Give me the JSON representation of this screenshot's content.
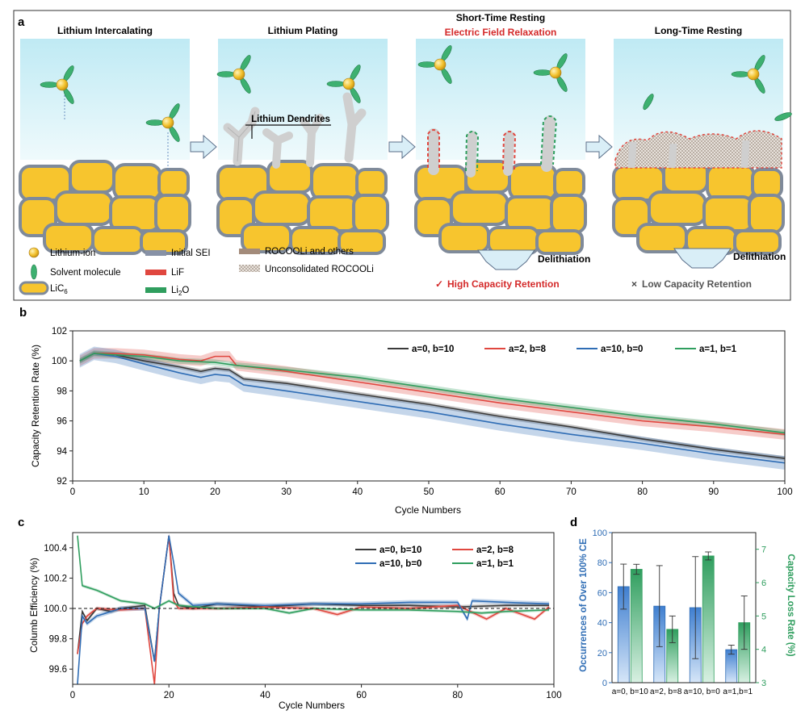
{
  "panel_a": {
    "label": "a",
    "stages": [
      {
        "title": "Lithium Intercalating",
        "subtitle": ""
      },
      {
        "title": "Lithium Plating",
        "subtitle": ""
      },
      {
        "title": "Short-Time Resting",
        "subtitle": "Electric Field Relaxation"
      },
      {
        "title": "Long-Time Resting",
        "subtitle": ""
      }
    ],
    "dendrite_label": "Lithium Dendrites",
    "delithiation_1": "Delithiation",
    "delithiation_2": "Delithiation",
    "result_high_mark": "✓",
    "result_high": "High  Capacity Retention",
    "result_low_mark": "×",
    "result_low": "Low  Capacity Retention",
    "legend": {
      "lithium_ion": "Lithium-ion",
      "solvent": "Solvent molecule",
      "lic6_main": "LiC",
      "lic6_sub": "6",
      "initial_sei": "Initial SEI",
      "lif": "LiF",
      "li2o_a": "Li",
      "li2o_sub": "2",
      "li2o_b": "O",
      "rocooli": "ROCOOLi and others",
      "unconsolidated": "Unconsolidated ROCOOLi"
    },
    "colors": {
      "sky": "#c9eef7",
      "particle": "#f7c52e",
      "particle_edge": "#7f8a9a",
      "dendrite": "#cfcfcf",
      "lif": "#e0473f",
      "li2o": "#2f9e5e",
      "sei": "#8791a6",
      "rocooli": "#a38b7a",
      "accent_red": "#d42a2a"
    }
  },
  "chart_data": [
    {
      "panel": "b",
      "type": "line",
      "title": "",
      "xlabel": "Cycle Numbers",
      "ylabel": "Capacity Retention Rate (%)",
      "xlim": [
        0,
        100
      ],
      "ylim": [
        92,
        102
      ],
      "xticks": [
        0,
        10,
        20,
        30,
        40,
        50,
        60,
        70,
        80,
        90,
        100
      ],
      "yticks": [
        92,
        94,
        96,
        98,
        100,
        102
      ],
      "legend_position": "top-right",
      "series": [
        {
          "name": "a=0, b=10",
          "color": "#3a3a3a",
          "band": 0.15,
          "points": [
            [
              1,
              100
            ],
            [
              3,
              100.5
            ],
            [
              6,
              100.4
            ],
            [
              10,
              100
            ],
            [
              15,
              99.6
            ],
            [
              18,
              99.3
            ],
            [
              20,
              99.5
            ],
            [
              22,
              99.4
            ],
            [
              24,
              98.8
            ],
            [
              30,
              98.5
            ],
            [
              40,
              97.8
            ],
            [
              50,
              97.1
            ],
            [
              60,
              96.3
            ],
            [
              70,
              95.6
            ],
            [
              80,
              94.8
            ],
            [
              90,
              94.1
            ],
            [
              100,
              93.5
            ]
          ]
        },
        {
          "name": "a=2, b=8",
          "color": "#e0473f",
          "band": 0.35,
          "points": [
            [
              1,
              100
            ],
            [
              3,
              100.5
            ],
            [
              6,
              100.5
            ],
            [
              10,
              100.4
            ],
            [
              15,
              100.1
            ],
            [
              18,
              100
            ],
            [
              20,
              100.3
            ],
            [
              22,
              100.3
            ],
            [
              23,
              99.7
            ],
            [
              30,
              99.3
            ],
            [
              40,
              98.6
            ],
            [
              50,
              97.9
            ],
            [
              60,
              97.2
            ],
            [
              70,
              96.6
            ],
            [
              80,
              96
            ],
            [
              90,
              95.6
            ],
            [
              100,
              95.1
            ]
          ]
        },
        {
          "name": "a=10, b=0",
          "color": "#2f6db5",
          "band": 0.45,
          "points": [
            [
              1,
              100
            ],
            [
              3,
              100.5
            ],
            [
              6,
              100.3
            ],
            [
              10,
              99.8
            ],
            [
              15,
              99.2
            ],
            [
              18,
              98.9
            ],
            [
              20,
              99.1
            ],
            [
              22,
              99
            ],
            [
              24,
              98.4
            ],
            [
              30,
              98
            ],
            [
              40,
              97.3
            ],
            [
              50,
              96.6
            ],
            [
              60,
              95.8
            ],
            [
              70,
              95.1
            ],
            [
              80,
              94.5
            ],
            [
              90,
              93.8
            ],
            [
              100,
              93.2
            ]
          ]
        },
        {
          "name": "a=1, b=1",
          "color": "#2f9e5e",
          "band": 0.2,
          "points": [
            [
              1,
              100
            ],
            [
              3,
              100.5
            ],
            [
              6,
              100.4
            ],
            [
              10,
              100.3
            ],
            [
              15,
              100
            ],
            [
              20,
              99.9
            ],
            [
              23,
              99.7
            ],
            [
              30,
              99.4
            ],
            [
              40,
              98.9
            ],
            [
              50,
              98.2
            ],
            [
              60,
              97.5
            ],
            [
              70,
              96.9
            ],
            [
              80,
              96.3
            ],
            [
              90,
              95.8
            ],
            [
              100,
              95.2
            ]
          ]
        }
      ]
    },
    {
      "panel": "c",
      "type": "line",
      "title": "",
      "xlabel": "Cycle Numbers",
      "ylabel": "Columb Efficiency (%)",
      "xlim": [
        0,
        100
      ],
      "ylim": [
        99.5,
        100.5
      ],
      "xticks": [
        0,
        20,
        40,
        60,
        80,
        100
      ],
      "yticks": [
        99.6,
        99.8,
        100.0,
        100.2,
        100.4
      ],
      "reference_line": 100.0,
      "legend_position": "top-right",
      "series": [
        {
          "name": "a=0, b=10",
          "color": "#3a3a3a",
          "band": 0.012,
          "points": [
            [
              1,
              99.7
            ],
            [
              2,
              99.98
            ],
            [
              3,
              99.92
            ],
            [
              5,
              100.0
            ],
            [
              8,
              99.98
            ],
            [
              10,
              100.0
            ],
            [
              15,
              100.02
            ],
            [
              17,
              99.65
            ],
            [
              18,
              100.0
            ],
            [
              20,
              100.48
            ],
            [
              21,
              100.1
            ],
            [
              22,
              100.02
            ],
            [
              25,
              100.0
            ],
            [
              30,
              100.03
            ],
            [
              40,
              100.01
            ],
            [
              50,
              100.03
            ],
            [
              60,
              100.02
            ],
            [
              70,
              100.02
            ],
            [
              80,
              100.01
            ],
            [
              90,
              100.02
            ],
            [
              99,
              100.02
            ]
          ]
        },
        {
          "name": "a=2, b=8",
          "color": "#e0473f",
          "band": 0.012,
          "points": [
            [
              1,
              99.7
            ],
            [
              2,
              99.9
            ],
            [
              3,
              99.95
            ],
            [
              5,
              100.0
            ],
            [
              10,
              99.99
            ],
            [
              15,
              100.0
            ],
            [
              17,
              99.5
            ],
            [
              18,
              100.0
            ],
            [
              20,
              100.48
            ],
            [
              21,
              100.05
            ],
            [
              22,
              100.0
            ],
            [
              30,
              100.0
            ],
            [
              40,
              100.01
            ],
            [
              50,
              100.0
            ],
            [
              55,
              99.96
            ],
            [
              60,
              100.01
            ],
            [
              70,
              100.0
            ],
            [
              80,
              100.02
            ],
            [
              86,
              99.93
            ],
            [
              90,
              100.0
            ],
            [
              96,
              99.93
            ],
            [
              99,
              100.01
            ]
          ]
        },
        {
          "name": "a=10, b=0",
          "color": "#2f6db5",
          "band": 0.015,
          "points": [
            [
              1,
              99.5
            ],
            [
              2,
              99.95
            ],
            [
              3,
              99.9
            ],
            [
              5,
              99.95
            ],
            [
              10,
              100.0
            ],
            [
              15,
              100.0
            ],
            [
              17,
              99.65
            ],
            [
              18,
              100.0
            ],
            [
              20,
              100.48
            ],
            [
              21,
              100.3
            ],
            [
              22,
              100.1
            ],
            [
              25,
              100.02
            ],
            [
              30,
              100.03
            ],
            [
              40,
              100.02
            ],
            [
              50,
              100.03
            ],
            [
              60,
              100.03
            ],
            [
              70,
              100.04
            ],
            [
              80,
              100.04
            ],
            [
              82,
              99.93
            ],
            [
              83,
              100.05
            ],
            [
              90,
              100.04
            ],
            [
              99,
              100.03
            ]
          ]
        },
        {
          "name": "a=1, b=1",
          "color": "#2f9e5e",
          "band": 0.01,
          "points": [
            [
              1,
              100.48
            ],
            [
              2,
              100.15
            ],
            [
              5,
              100.12
            ],
            [
              10,
              100.05
            ],
            [
              15,
              100.03
            ],
            [
              17,
              100.0
            ],
            [
              20,
              100.05
            ],
            [
              22,
              100.02
            ],
            [
              30,
              100.0
            ],
            [
              40,
              100.0
            ],
            [
              45,
              99.97
            ],
            [
              50,
              100.0
            ],
            [
              60,
              99.99
            ],
            [
              70,
              99.99
            ],
            [
              80,
              99.98
            ],
            [
              85,
              99.97
            ],
            [
              90,
              99.98
            ],
            [
              99,
              99.99
            ]
          ]
        }
      ]
    },
    {
      "panel": "d",
      "type": "bar",
      "title": "",
      "categories": [
        "a=0, b=10",
        "a=2, b=8",
        "a=10, b=0",
        "a=1,b=1"
      ],
      "series": [
        {
          "name": "Occurrences of Over 100% CE",
          "axis": "left",
          "color": "#3f7fd0",
          "values": [
            64,
            51,
            50,
            22
          ],
          "errors": [
            15,
            27,
            34,
            3
          ]
        },
        {
          "name": "Capacity Loss Rate (%)",
          "axis": "right",
          "color": "#2f9e5e",
          "values": [
            6.4,
            4.6,
            6.8,
            4.8
          ],
          "errors": [
            0.15,
            0.4,
            0.12,
            0.8
          ]
        }
      ],
      "ylabel": "Occurrences of Over 100% CE",
      "ylim": [
        0,
        100
      ],
      "yticks": [
        0,
        20,
        40,
        60,
        80,
        100
      ],
      "y2label": "Capacity Loss Rate (%)",
      "y2lim": [
        3,
        7.5
      ],
      "y2ticks": [
        3,
        4,
        5,
        6,
        7
      ]
    }
  ],
  "panel_labels": {
    "b": "b",
    "c": "c",
    "d": "d"
  }
}
